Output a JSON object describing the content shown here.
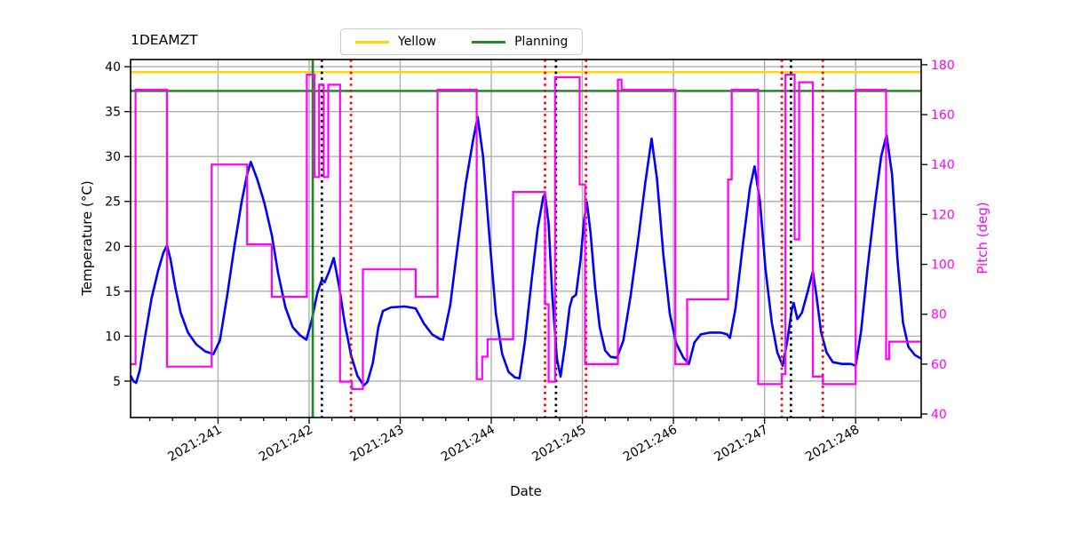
{
  "title": "1DEAMZT",
  "legend": [
    {
      "label": "Yellow",
      "color": "#ffd700"
    },
    {
      "label": "Planning",
      "color": "#228b22"
    }
  ],
  "chart_data": {
    "type": "line",
    "title": "1DEAMZT",
    "xlabel": "Date",
    "ylabel_left": "Temperature (°C)",
    "ylabel_right": "Pitch (deg)",
    "grid": true,
    "legend_position": "top-center",
    "xlim": [
      240.04,
      248.72
    ],
    "ylim_left": [
      0.94,
      40.8
    ],
    "ylim_right": [
      38.6,
      182.1
    ],
    "x_ticks": [
      {
        "value": 241,
        "label": "2021:241"
      },
      {
        "value": 242,
        "label": "2021:242"
      },
      {
        "value": 243,
        "label": "2021:243"
      },
      {
        "value": 244,
        "label": "2021:244"
      },
      {
        "value": 245,
        "label": "2021:245"
      },
      {
        "value": 246,
        "label": "2021:246"
      },
      {
        "value": 247,
        "label": "2021:247"
      },
      {
        "value": 248,
        "label": "2021:248"
      }
    ],
    "x_minor_tick_step": 0.25,
    "y_ticks_left": [
      5,
      10,
      15,
      20,
      25,
      30,
      35,
      40
    ],
    "y_ticks_right": [
      40,
      60,
      80,
      100,
      120,
      140,
      160,
      180
    ],
    "colors": {
      "temperature": "#0000ff",
      "pitch": "#ff00ff",
      "yellow_limit": "#ffd700",
      "planning_limit": "#228b22",
      "grid": "#b0b0b0",
      "red_event": "#ff0000",
      "black_event": "#000000"
    },
    "hlines": [
      {
        "name": "Yellow",
        "y": 39.4,
        "axis": "left",
        "color": "#ffd700"
      },
      {
        "name": "Planning",
        "y": 37.3,
        "axis": "left",
        "color": "#228b22"
      }
    ],
    "vlines": [
      {
        "x": 242.04,
        "color": "#228b22",
        "style": "solid",
        "name": "green-solid"
      },
      {
        "x": 242.14,
        "color": "#000000",
        "style": "dotted",
        "name": "black-dotted"
      },
      {
        "x": 242.46,
        "color": "#ff0000",
        "style": "dotted",
        "name": "red-dotted"
      },
      {
        "x": 244.59,
        "color": "#ff0000",
        "style": "dotted",
        "name": "red-dotted"
      },
      {
        "x": 244.71,
        "color": "#000000",
        "style": "dotted",
        "name": "black-dotted"
      },
      {
        "x": 245.04,
        "color": "#ff0000",
        "style": "dotted",
        "name": "red-dotted"
      },
      {
        "x": 247.19,
        "color": "#ff0000",
        "style": "dotted",
        "name": "red-dotted"
      },
      {
        "x": 247.29,
        "color": "#000000",
        "style": "dotted",
        "name": "black-dotted"
      },
      {
        "x": 247.64,
        "color": "#ff0000",
        "style": "dotted",
        "name": "red-dotted"
      }
    ],
    "series": [
      {
        "name": "1DEAMZT temperature",
        "axis": "left",
        "color": "#0000ff",
        "style": "line",
        "points": [
          [
            240.04,
            5.6
          ],
          [
            240.07,
            5.0
          ],
          [
            240.1,
            4.8
          ],
          [
            240.14,
            6.2
          ],
          [
            240.2,
            10.0
          ],
          [
            240.27,
            14.2
          ],
          [
            240.34,
            17.2
          ],
          [
            240.4,
            19.3
          ],
          [
            240.44,
            20.1
          ],
          [
            240.48,
            18.5
          ],
          [
            240.53,
            15.5
          ],
          [
            240.59,
            12.6
          ],
          [
            240.67,
            10.4
          ],
          [
            240.76,
            9.1
          ],
          [
            240.86,
            8.3
          ],
          [
            240.95,
            8.0
          ],
          [
            241.02,
            9.5
          ],
          [
            241.1,
            14.5
          ],
          [
            241.18,
            20.0
          ],
          [
            241.26,
            25.0
          ],
          [
            241.32,
            28.0
          ],
          [
            241.36,
            29.4
          ],
          [
            241.43,
            27.5
          ],
          [
            241.51,
            24.8
          ],
          [
            241.59,
            21.3
          ],
          [
            241.66,
            17.0
          ],
          [
            241.74,
            13.2
          ],
          [
            241.82,
            11.0
          ],
          [
            241.9,
            10.1
          ],
          [
            241.97,
            9.6
          ],
          [
            242.03,
            11.8
          ],
          [
            242.09,
            14.8
          ],
          [
            242.14,
            16.3
          ],
          [
            242.17,
            16.0
          ],
          [
            242.22,
            17.2
          ],
          [
            242.27,
            18.7
          ],
          [
            242.33,
            15.5
          ],
          [
            242.39,
            11.5
          ],
          [
            242.46,
            7.9
          ],
          [
            242.53,
            5.6
          ],
          [
            242.6,
            4.5
          ],
          [
            242.64,
            4.9
          ],
          [
            242.7,
            7.0
          ],
          [
            242.76,
            11.0
          ],
          [
            242.81,
            12.8
          ],
          [
            242.9,
            13.2
          ],
          [
            243.05,
            13.3
          ],
          [
            243.17,
            13.1
          ],
          [
            243.26,
            11.4
          ],
          [
            243.35,
            10.2
          ],
          [
            243.43,
            9.7
          ],
          [
            243.47,
            9.6
          ],
          [
            243.55,
            13.5
          ],
          [
            243.63,
            20.0
          ],
          [
            243.72,
            27.0
          ],
          [
            243.8,
            31.8
          ],
          [
            243.85,
            34.4
          ],
          [
            243.91,
            30.0
          ],
          [
            243.98,
            21.0
          ],
          [
            244.05,
            12.5
          ],
          [
            244.12,
            8.0
          ],
          [
            244.19,
            6.0
          ],
          [
            244.26,
            5.4
          ],
          [
            244.31,
            5.3
          ],
          [
            244.37,
            9.5
          ],
          [
            244.44,
            16.0
          ],
          [
            244.51,
            22.0
          ],
          [
            244.57,
            25.5
          ],
          [
            244.59,
            25.8
          ],
          [
            244.63,
            22.5
          ],
          [
            244.67,
            14.5
          ],
          [
            244.72,
            7.5
          ],
          [
            244.76,
            5.5
          ],
          [
            244.81,
            9.0
          ],
          [
            244.86,
            13.2
          ],
          [
            244.89,
            14.3
          ],
          [
            244.93,
            14.6
          ],
          [
            244.98,
            18.5
          ],
          [
            245.02,
            23.0
          ],
          [
            245.05,
            24.9
          ],
          [
            245.09,
            21.5
          ],
          [
            245.14,
            15.5
          ],
          [
            245.19,
            11.0
          ],
          [
            245.25,
            8.4
          ],
          [
            245.31,
            7.7
          ],
          [
            245.38,
            7.6
          ],
          [
            245.45,
            9.5
          ],
          [
            245.53,
            14.5
          ],
          [
            245.61,
            20.5
          ],
          [
            245.69,
            27.0
          ],
          [
            245.76,
            32.0
          ],
          [
            245.82,
            27.5
          ],
          [
            245.89,
            19.0
          ],
          [
            245.96,
            12.5
          ],
          [
            246.03,
            9.2
          ],
          [
            246.11,
            7.6
          ],
          [
            246.17,
            6.9
          ],
          [
            246.23,
            9.3
          ],
          [
            246.3,
            10.2
          ],
          [
            246.4,
            10.4
          ],
          [
            246.52,
            10.4
          ],
          [
            246.59,
            10.2
          ],
          [
            246.62,
            9.8
          ],
          [
            246.68,
            13.0
          ],
          [
            246.76,
            20.0
          ],
          [
            246.84,
            26.5
          ],
          [
            246.89,
            28.9
          ],
          [
            246.95,
            25.0
          ],
          [
            247.01,
            17.5
          ],
          [
            247.08,
            11.5
          ],
          [
            247.14,
            8.2
          ],
          [
            247.2,
            6.7
          ],
          [
            247.25,
            9.5
          ],
          [
            247.3,
            13.0
          ],
          [
            247.32,
            13.7
          ],
          [
            247.36,
            11.9
          ],
          [
            247.41,
            12.6
          ],
          [
            247.47,
            14.8
          ],
          [
            247.53,
            17.2
          ],
          [
            247.57,
            14.5
          ],
          [
            247.62,
            10.5
          ],
          [
            247.68,
            8.2
          ],
          [
            247.75,
            7.1
          ],
          [
            247.85,
            6.9
          ],
          [
            247.95,
            6.9
          ],
          [
            248.0,
            6.7
          ],
          [
            248.06,
            10.5
          ],
          [
            248.13,
            17.5
          ],
          [
            248.21,
            24.5
          ],
          [
            248.28,
            30.0
          ],
          [
            248.34,
            32.4
          ],
          [
            248.4,
            28.0
          ],
          [
            248.46,
            18.5
          ],
          [
            248.52,
            11.5
          ],
          [
            248.58,
            8.8
          ],
          [
            248.65,
            7.9
          ],
          [
            248.72,
            7.5
          ]
        ]
      },
      {
        "name": "Pitch",
        "axis": "right",
        "color": "#ff00ff",
        "style": "step",
        "points": [
          [
            240.04,
            60
          ],
          [
            240.095,
            170
          ],
          [
            240.44,
            59
          ],
          [
            240.93,
            140
          ],
          [
            241.32,
            108
          ],
          [
            241.59,
            87
          ],
          [
            241.975,
            176
          ],
          [
            242.06,
            135
          ],
          [
            242.11,
            172
          ],
          [
            242.16,
            135
          ],
          [
            242.21,
            172
          ],
          [
            242.34,
            53
          ],
          [
            242.47,
            50
          ],
          [
            242.59,
            98
          ],
          [
            243.17,
            87
          ],
          [
            243.41,
            170
          ],
          [
            243.84,
            54
          ],
          [
            243.9,
            63
          ],
          [
            243.96,
            70
          ],
          [
            244.24,
            129
          ],
          [
            244.59,
            84
          ],
          [
            244.63,
            53
          ],
          [
            244.7,
            175
          ],
          [
            244.97,
            132
          ],
          [
            245.03,
            60
          ],
          [
            245.39,
            174
          ],
          [
            245.43,
            170
          ],
          [
            246.02,
            60
          ],
          [
            246.15,
            86
          ],
          [
            246.6,
            134
          ],
          [
            246.64,
            170
          ],
          [
            246.93,
            52
          ],
          [
            247.19,
            56
          ],
          [
            247.23,
            176
          ],
          [
            247.33,
            110
          ],
          [
            247.38,
            173
          ],
          [
            247.53,
            55
          ],
          [
            247.64,
            52
          ],
          [
            248.0,
            170
          ],
          [
            248.335,
            62
          ],
          [
            248.37,
            69
          ],
          [
            248.72,
            69
          ]
        ]
      }
    ]
  }
}
